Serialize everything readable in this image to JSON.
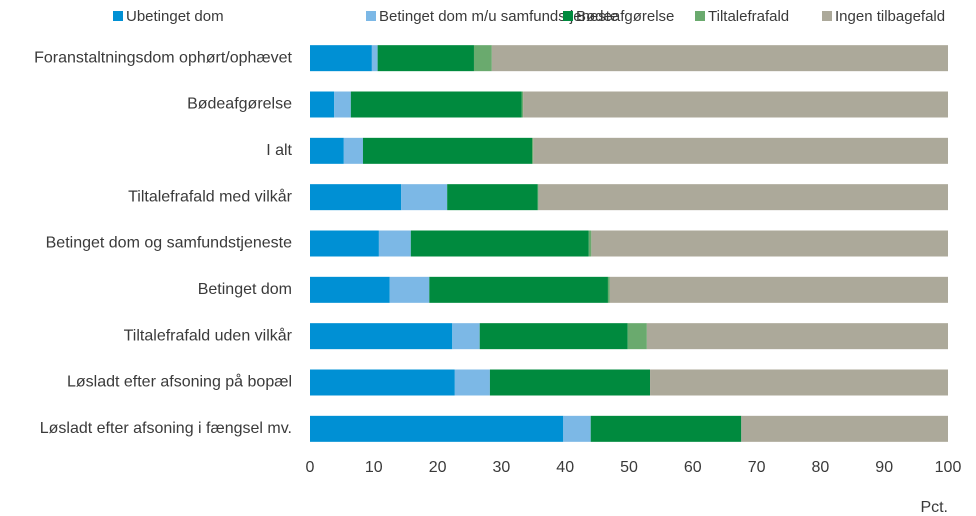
{
  "chart_data": {
    "type": "bar",
    "orientation": "horizontal",
    "stacked": true,
    "categories": [
      "Foranstaltningsdom ophørt/ophævet",
      "Bødeafgørelse",
      "I alt",
      "Tiltalefrafald med vilkår",
      "Betinget dom og samfundstjeneste",
      "Betinget dom",
      "Tiltalefrafald uden vilkår",
      "Løsladt efter afsoning på bopæl",
      "Løsladt efter afsoning i fængsel mv."
    ],
    "series": [
      {
        "name": "Ubetinget dom",
        "color": "#0090d4",
        "values": [
          9.7,
          3.8,
          5.3,
          14.3,
          10.8,
          12.5,
          22.3,
          22.7,
          39.7
        ]
      },
      {
        "name": "Betinget dom m/u samfundstjeneste",
        "color": "#7cb8e6",
        "values": [
          0.9,
          2.6,
          3.0,
          7.2,
          5.0,
          6.2,
          4.3,
          5.5,
          4.3
        ]
      },
      {
        "name": "Bødeafgørelse",
        "color": "#008a3e",
        "values": [
          15.1,
          26.8,
          26.5,
          14.2,
          27.9,
          28.0,
          23.2,
          25.1,
          23.6
        ]
      },
      {
        "name": "Tiltalefrafald",
        "color": "#6aaa6e",
        "values": [
          2.8,
          0.2,
          0.2,
          0.1,
          0.4,
          0.3,
          3.0,
          0,
          0
        ]
      },
      {
        "name": "Ingen tilbagefald",
        "color": "#aca99a",
        "values": [
          71.5,
          66.6,
          65.0,
          64.2,
          55.9,
          53.0,
          47.2,
          46.7,
          32.4
        ]
      }
    ],
    "xlabel": "Pct.",
    "xlim": [
      0,
      100
    ],
    "xticks": [
      0,
      10,
      20,
      30,
      40,
      50,
      60,
      70,
      80,
      90,
      100
    ],
    "grid": false,
    "legend": "top"
  }
}
